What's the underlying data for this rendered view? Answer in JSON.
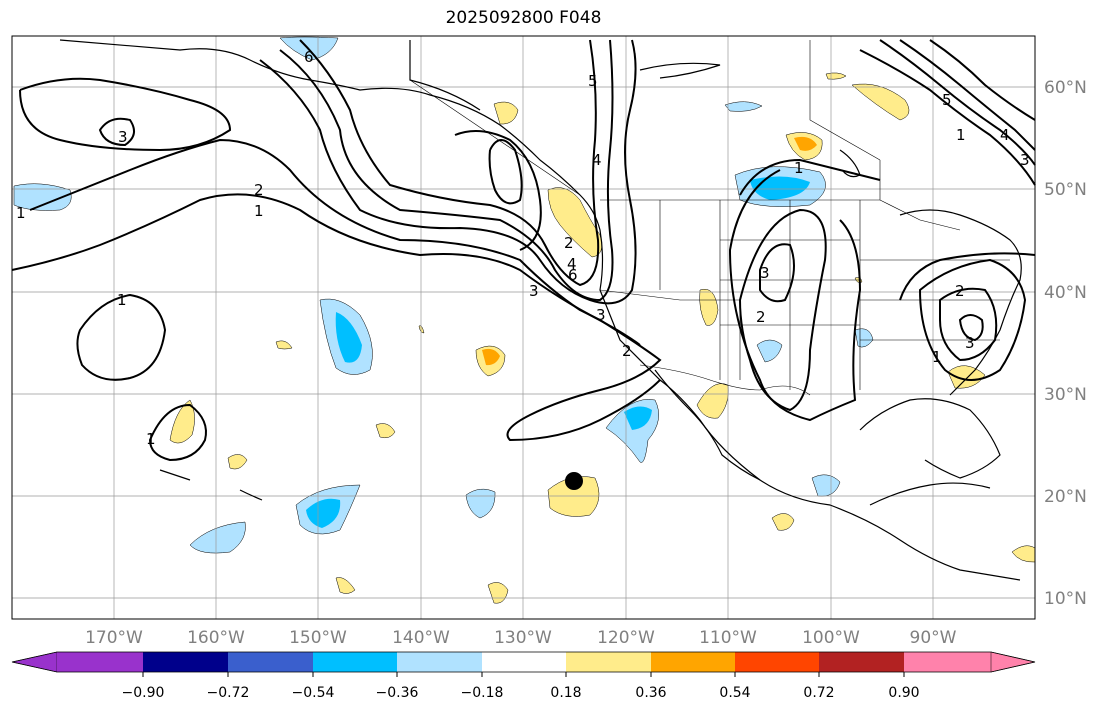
{
  "title": "2025092800 F048",
  "lat_labels": [
    "60°N",
    "50°N",
    "40°N",
    "30°N",
    "20°N",
    "10°N"
  ],
  "lon_labels": [
    "170°W",
    "160°W",
    "150°W",
    "140°W",
    "130°W",
    "120°W",
    "110°W",
    "100°W",
    "90°W"
  ],
  "contour_labels": [
    "6",
    "5",
    "4",
    "3",
    "2",
    "1",
    "1",
    "2",
    "3",
    "6",
    "4",
    "3",
    "2",
    "1",
    "1",
    "1",
    "3",
    "2",
    "2",
    "3",
    "1",
    "1",
    "5",
    "4",
    "3"
  ],
  "colorbar": {
    "tick_labels": [
      "−0.90",
      "−0.72",
      "−0.54",
      "−0.36",
      "−0.18",
      "0.18",
      "0.36",
      "0.54",
      "0.72",
      "0.90"
    ],
    "colors": [
      "#9932cc",
      "#00008b",
      "#3a5fcd",
      "#00bfff",
      "#b0e2ff",
      "#ffffff",
      "#ffec8b",
      "#ffa500",
      "#ff4500",
      "#b22222",
      "#ff82ab"
    ]
  },
  "marker": "black-dot"
}
